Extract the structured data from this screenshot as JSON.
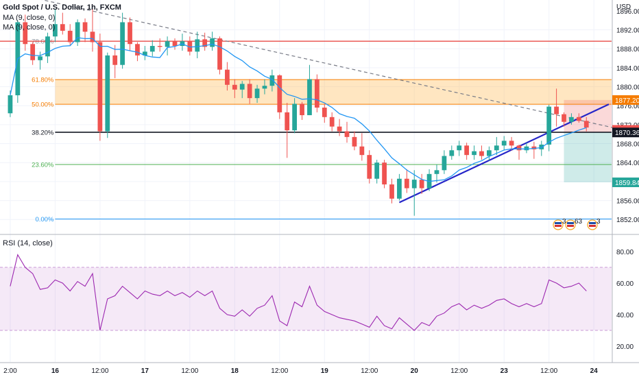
{
  "title": "Gold Spot / U.S. Dollar, 1h, FXCM",
  "currency": "USD",
  "indicators": {
    "ma1": "MA (9, close, 0)",
    "ma2": "MA (9, close, 0)",
    "rsi": "RSI (14, close)"
  },
  "price_axis": {
    "top_partial": "1896.00",
    "labels": [
      "1892.00",
      "1888.00",
      "1884.00",
      "1880.00",
      "1876.00",
      "1872.00",
      "1868.00",
      "1864.00",
      "1860.00",
      "1856.00",
      "1852.00"
    ]
  },
  "price_tags": [
    {
      "text": "1877.20",
      "price": 1877.2,
      "color": "#f57c00"
    },
    {
      "text": "1870.90",
      "price": 1870.9,
      "color": "#ef5350"
    },
    {
      "text": "1870.36",
      "price": 1870.36,
      "color": "#131722"
    },
    {
      "text": "1859.84",
      "price": 1859.84,
      "color": "#26a69a"
    }
  ],
  "rsi_axis": {
    "labels": [
      "80.00",
      "60.00",
      "40.00",
      "20.00"
    ]
  },
  "time_axis": [
    {
      "t": "2:00",
      "x": 0
    },
    {
      "t": "16",
      "x": 6,
      "bold": true
    },
    {
      "t": "12:00",
      "x": 12
    },
    {
      "t": "17",
      "x": 18,
      "bold": true
    },
    {
      "t": "12:00",
      "x": 24
    },
    {
      "t": "18",
      "x": 30,
      "bold": true
    },
    {
      "t": "12:00",
      "x": 36
    },
    {
      "t": "19",
      "x": 42,
      "bold": true
    },
    {
      "t": "12:00",
      "x": 48
    },
    {
      "t": "20",
      "x": 54,
      "bold": true
    },
    {
      "t": "12:00",
      "x": 60
    },
    {
      "t": "23",
      "x": 66,
      "bold": true
    },
    {
      "t": "12:00",
      "x": 72
    },
    {
      "t": "24",
      "x": 78,
      "bold": true
    }
  ],
  "fib_levels": [
    {
      "label": "61.80%",
      "price": 1881.5,
      "color": "#f57c00"
    },
    {
      "label": "50.00%",
      "price": 1876.3,
      "color": "#f57c00"
    },
    {
      "label": "38.20%",
      "price": 1870.4,
      "color": "#131722"
    },
    {
      "label": "23.60%",
      "price": 1863.6,
      "color": "#4caf50"
    },
    {
      "label": "0.00%",
      "price": 1852.1,
      "color": "#2196f3"
    }
  ],
  "fib_partial": "78.60%",
  "event_badges": [
    "3",
    "63",
    "3"
  ],
  "colors": {
    "up": "#26a69a",
    "down": "#ef5350",
    "ma": "#2196f3",
    "rsi": "#9c27b0",
    "trend": "#2525c8"
  },
  "chart_data": {
    "type": "candlestick",
    "symbol": "XAUUSD",
    "timeframe": "1h",
    "ylim": [
      1849,
      1898
    ],
    "x_index_range": [
      -1,
      80
    ],
    "candles": [
      [
        1874.4,
        1879.2,
        1873.6,
        1878.2
      ],
      [
        1878.2,
        1894.0,
        1876.6,
        1893.6
      ],
      [
        1893.6,
        1895.2,
        1887.6,
        1889.0
      ],
      [
        1889.0,
        1889.4,
        1884.6,
        1885.6
      ],
      [
        1885.6,
        1887.4,
        1883.6,
        1886.4
      ],
      [
        1886.4,
        1891.4,
        1885.0,
        1890.6
      ],
      [
        1890.6,
        1896.4,
        1889.4,
        1893.2
      ],
      [
        1893.2,
        1895.6,
        1891.0,
        1891.8
      ],
      [
        1891.8,
        1893.2,
        1888.6,
        1889.4
      ],
      [
        1889.4,
        1894.2,
        1888.6,
        1893.6
      ],
      [
        1893.6,
        1894.4,
        1889.4,
        1891.6
      ],
      [
        1891.6,
        1896.4,
        1887.4,
        1889.4
      ],
      [
        1889.4,
        1891.2,
        1868.6,
        1870.6
      ],
      [
        1870.6,
        1887.2,
        1869.2,
        1886.6
      ],
      [
        1886.6,
        1888.8,
        1881.8,
        1884.6
      ],
      [
        1884.6,
        1895.6,
        1883.8,
        1893.6
      ],
      [
        1893.6,
        1894.6,
        1887.6,
        1889.0
      ],
      [
        1889.0,
        1889.4,
        1885.4,
        1886.6
      ],
      [
        1886.6,
        1888.6,
        1885.6,
        1887.4
      ],
      [
        1887.4,
        1889.8,
        1886.4,
        1888.6
      ],
      [
        1888.6,
        1890.2,
        1887.4,
        1888.4
      ],
      [
        1888.4,
        1890.6,
        1886.6,
        1889.6
      ],
      [
        1889.6,
        1890.2,
        1887.8,
        1888.6
      ],
      [
        1888.6,
        1891.2,
        1887.6,
        1889.6
      ],
      [
        1889.6,
        1890.6,
        1886.6,
        1887.4
      ],
      [
        1887.4,
        1891.6,
        1886.0,
        1890.0
      ],
      [
        1890.0,
        1891.4,
        1887.6,
        1888.4
      ],
      [
        1888.4,
        1891.6,
        1887.6,
        1890.2
      ],
      [
        1890.2,
        1890.6,
        1882.6,
        1883.6
      ],
      [
        1883.6,
        1885.2,
        1879.2,
        1880.4
      ],
      [
        1880.4,
        1881.6,
        1877.6,
        1879.4
      ],
      [
        1879.4,
        1881.2,
        1877.6,
        1880.6
      ],
      [
        1880.6,
        1881.6,
        1876.4,
        1877.6
      ],
      [
        1877.6,
        1880.4,
        1876.6,
        1879.6
      ],
      [
        1879.6,
        1881.6,
        1878.4,
        1880.2
      ],
      [
        1880.2,
        1883.6,
        1879.0,
        1882.4
      ],
      [
        1882.4,
        1882.6,
        1873.2,
        1874.6
      ],
      [
        1874.6,
        1876.6,
        1865.0,
        1870.8
      ],
      [
        1870.8,
        1877.6,
        1870.2,
        1876.4
      ],
      [
        1876.4,
        1876.8,
        1873.0,
        1874.0
      ],
      [
        1874.0,
        1884.6,
        1874.0,
        1881.6
      ],
      [
        1881.6,
        1882.6,
        1874.6,
        1875.6
      ],
      [
        1875.6,
        1876.4,
        1872.4,
        1873.6
      ],
      [
        1873.6,
        1874.6,
        1870.6,
        1871.6
      ],
      [
        1871.6,
        1873.2,
        1869.6,
        1870.6
      ],
      [
        1870.6,
        1872.6,
        1868.2,
        1869.4
      ],
      [
        1869.4,
        1870.6,
        1866.6,
        1867.4
      ],
      [
        1867.4,
        1870.2,
        1864.4,
        1865.6
      ],
      [
        1865.6,
        1866.6,
        1859.6,
        1860.6
      ],
      [
        1860.6,
        1864.6,
        1859.6,
        1864.0
      ],
      [
        1864.0,
        1864.6,
        1858.6,
        1859.4
      ],
      [
        1859.4,
        1860.6,
        1855.4,
        1856.4
      ],
      [
        1856.4,
        1861.6,
        1856.0,
        1860.6
      ],
      [
        1860.6,
        1862.6,
        1857.6,
        1858.6
      ],
      [
        1858.6,
        1862.4,
        1852.8,
        1860.4
      ],
      [
        1860.4,
        1861.6,
        1857.4,
        1858.6
      ],
      [
        1858.6,
        1862.6,
        1858.0,
        1861.6
      ],
      [
        1861.6,
        1863.6,
        1859.8,
        1862.4
      ],
      [
        1862.4,
        1866.6,
        1861.6,
        1865.4
      ],
      [
        1865.4,
        1867.6,
        1864.6,
        1866.6
      ],
      [
        1866.6,
        1868.6,
        1865.4,
        1867.6
      ],
      [
        1867.6,
        1868.2,
        1864.6,
        1865.6
      ],
      [
        1865.6,
        1867.6,
        1864.6,
        1866.4
      ],
      [
        1866.4,
        1867.6,
        1864.6,
        1865.4
      ],
      [
        1865.4,
        1867.4,
        1864.4,
        1866.6
      ],
      [
        1866.6,
        1869.4,
        1865.6,
        1867.6
      ],
      [
        1867.6,
        1869.6,
        1866.6,
        1868.6
      ],
      [
        1868.6,
        1869.4,
        1866.6,
        1867.6
      ],
      [
        1867.6,
        1867.8,
        1864.6,
        1866.6
      ],
      [
        1866.6,
        1868.2,
        1866.0,
        1867.4
      ],
      [
        1867.4,
        1868.4,
        1864.8,
        1866.8
      ],
      [
        1866.8,
        1868.6,
        1865.4,
        1867.8
      ],
      [
        1867.8,
        1876.2,
        1866.4,
        1875.8
      ],
      [
        1875.8,
        1879.6,
        1871.6,
        1874.2
      ],
      [
        1874.2,
        1874.6,
        1871.6,
        1872.6
      ],
      [
        1872.6,
        1874.4,
        1872.0,
        1873.6
      ],
      [
        1873.6,
        1874.4,
        1872.4,
        1872.8
      ],
      [
        1872.8,
        1873.6,
        1870.6,
        1871.4
      ]
    ],
    "ma_period": 9,
    "rsi": {
      "period": 14,
      "ylim": [
        10,
        90
      ],
      "band": [
        30,
        70
      ],
      "values": [
        58,
        78,
        70,
        66,
        56,
        57,
        62,
        60,
        55,
        61,
        58,
        66,
        30,
        50,
        52,
        58,
        54,
        50,
        55,
        53,
        52,
        55,
        52,
        54,
        51,
        55,
        52,
        55,
        44,
        40,
        39,
        43,
        39,
        44,
        46,
        52,
        36,
        33,
        48,
        45,
        58,
        46,
        42,
        40,
        38,
        37,
        36,
        34,
        32,
        39,
        33,
        31,
        38,
        34,
        30,
        35,
        33,
        39,
        41,
        45,
        47,
        43,
        46,
        44,
        46,
        49,
        50,
        47,
        45,
        47,
        45,
        47,
        62,
        60,
        57,
        58,
        60,
        55
      ]
    },
    "trend_line": {
      "from": [
        52,
        1855.6
      ],
      "to": [
        80,
        1876.3
      ]
    },
    "resistance_line": {
      "from": [
        -1,
        1900.2
      ],
      "to": [
        85,
        1869.8
      ]
    },
    "horizontal_line": {
      "price": 1889.6
    },
    "zone": {
      "top": 1881.5,
      "bottom": 1876.3
    },
    "position": {
      "entry": 1870.4,
      "stop": 1877.2,
      "target": 1859.84,
      "x_start": 74,
      "x_end": 88
    }
  }
}
